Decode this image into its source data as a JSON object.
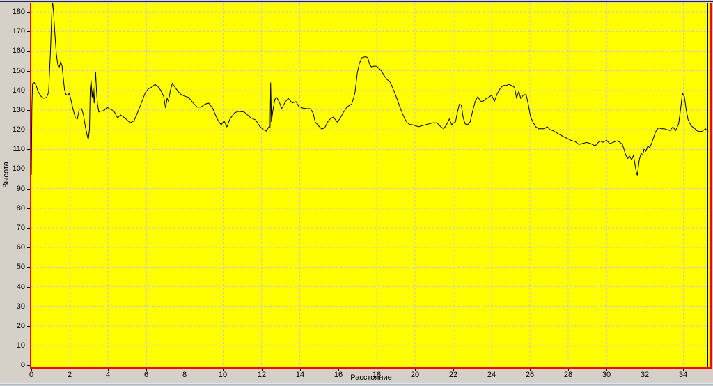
{
  "ui": {
    "background_color": "#d5d1c8",
    "top_edge_color": "#23235f",
    "bottom_edge_color": "#dce6f4"
  },
  "chart_data": {
    "type": "line",
    "title": "",
    "xlabel": "Расстояние",
    "ylabel": "Высота",
    "xlim": [
      0,
      35.4
    ],
    "ylim": [
      -1,
      184.3
    ],
    "x_ticks": [
      0,
      2,
      4,
      6,
      8,
      10,
      12,
      14,
      16,
      18,
      20,
      22,
      24,
      26,
      28,
      30,
      32,
      34
    ],
    "y_ticks": [
      0,
      10,
      20,
      30,
      40,
      50,
      60,
      70,
      80,
      90,
      100,
      110,
      120,
      130,
      140,
      150,
      160,
      170,
      180
    ],
    "grid": true,
    "legend": "none",
    "cursor_distance": 35.27,
    "colors": {
      "plot_background": "#ffff00",
      "grid": "#c6c6cc",
      "line": "#000000",
      "frame": "#ff0000",
      "cursor": "#000000",
      "tick_text": "#000000"
    },
    "points": [
      [
        0,
        97
      ],
      [
        0.03,
        131
      ],
      [
        0.06,
        143.5
      ],
      [
        0.15,
        144
      ],
      [
        0.25,
        142.5
      ],
      [
        0.35,
        139.5
      ],
      [
        0.5,
        137
      ],
      [
        0.65,
        136
      ],
      [
        0.8,
        136.5
      ],
      [
        0.9,
        139
      ],
      [
        1,
        160
      ],
      [
        1.06,
        178
      ],
      [
        1.1,
        186
      ],
      [
        1.16,
        180
      ],
      [
        1.22,
        170
      ],
      [
        1.3,
        159
      ],
      [
        1.38,
        153
      ],
      [
        1.46,
        152
      ],
      [
        1.53,
        154.5
      ],
      [
        1.6,
        152.5
      ],
      [
        1.67,
        146
      ],
      [
        1.73,
        140.5
      ],
      [
        1.8,
        138
      ],
      [
        1.9,
        137.5
      ],
      [
        1.98,
        138.5
      ],
      [
        2.07,
        135
      ],
      [
        2.17,
        130.5
      ],
      [
        2.3,
        126
      ],
      [
        2.4,
        125.5
      ],
      [
        2.5,
        130.4
      ],
      [
        2.62,
        130.7
      ],
      [
        2.72,
        127.5
      ],
      [
        2.8,
        122.5
      ],
      [
        2.9,
        117.5
      ],
      [
        2.97,
        115
      ],
      [
        3.03,
        120
      ],
      [
        3.07,
        141
      ],
      [
        3.12,
        145
      ],
      [
        3.17,
        136.5
      ],
      [
        3.22,
        141.5
      ],
      [
        3.28,
        133.5
      ],
      [
        3.35,
        149.5
      ],
      [
        3.4,
        140
      ],
      [
        3.45,
        133
      ],
      [
        3.52,
        129
      ],
      [
        3.62,
        129.5
      ],
      [
        3.72,
        129.5
      ],
      [
        3.82,
        130
      ],
      [
        3.95,
        131.4
      ],
      [
        4.1,
        130.5
      ],
      [
        4.3,
        129.6
      ],
      [
        4.5,
        126
      ],
      [
        4.65,
        127.5
      ],
      [
        4.8,
        126.5
      ],
      [
        5,
        125
      ],
      [
        5.15,
        123.5
      ],
      [
        5.35,
        124.5
      ],
      [
        5.55,
        129
      ],
      [
        5.75,
        134
      ],
      [
        5.95,
        139
      ],
      [
        6.1,
        140.8
      ],
      [
        6.25,
        141.5
      ],
      [
        6.45,
        143
      ],
      [
        6.6,
        142
      ],
      [
        6.75,
        140
      ],
      [
        6.9,
        137
      ],
      [
        7,
        131
      ],
      [
        7.08,
        136
      ],
      [
        7.15,
        134.5
      ],
      [
        7.25,
        140
      ],
      [
        7.35,
        143.5
      ],
      [
        7.5,
        141.5
      ],
      [
        7.65,
        139.5
      ],
      [
        7.8,
        138
      ],
      [
        8,
        137
      ],
      [
        8.2,
        136.5
      ],
      [
        8.45,
        133.5
      ],
      [
        8.65,
        131.5
      ],
      [
        8.85,
        131.5
      ],
      [
        9.05,
        133
      ],
      [
        9.25,
        133.5
      ],
      [
        9.45,
        131
      ],
      [
        9.6,
        127.5
      ],
      [
        9.75,
        124.5
      ],
      [
        9.9,
        122.5
      ],
      [
        10.05,
        124.5
      ],
      [
        10.2,
        121.5
      ],
      [
        10.35,
        125.4
      ],
      [
        10.6,
        128.6
      ],
      [
        10.8,
        129.3
      ],
      [
        11.1,
        129
      ],
      [
        11.45,
        126
      ],
      [
        11.7,
        125
      ],
      [
        11.9,
        121.8
      ],
      [
        12.1,
        120
      ],
      [
        12.25,
        119.3
      ],
      [
        12.38,
        121.4
      ],
      [
        12.45,
        121.4
      ],
      [
        12.48,
        144
      ],
      [
        12.52,
        124
      ],
      [
        12.6,
        130
      ],
      [
        12.7,
        135.5
      ],
      [
        12.8,
        136.4
      ],
      [
        12.95,
        133.6
      ],
      [
        13.05,
        130.7
      ],
      [
        13.25,
        134.3
      ],
      [
        13.4,
        136
      ],
      [
        13.6,
        133.6
      ],
      [
        13.8,
        134.3
      ],
      [
        13.95,
        131.8
      ],
      [
        14.15,
        131
      ],
      [
        14.35,
        130.7
      ],
      [
        14.55,
        130.7
      ],
      [
        14.7,
        128.2
      ],
      [
        14.8,
        124
      ],
      [
        15,
        121.8
      ],
      [
        15.15,
        120.3
      ],
      [
        15.3,
        121
      ],
      [
        15.45,
        123.9
      ],
      [
        15.6,
        125.7
      ],
      [
        15.75,
        126.4
      ],
      [
        15.95,
        123.9
      ],
      [
        16.1,
        125.7
      ],
      [
        16.25,
        128.5
      ],
      [
        16.45,
        131.5
      ],
      [
        16.6,
        132.5
      ],
      [
        16.7,
        133
      ],
      [
        16.8,
        136
      ],
      [
        16.88,
        139
      ],
      [
        17,
        149
      ],
      [
        17.1,
        153.5
      ],
      [
        17.22,
        156.5
      ],
      [
        17.35,
        157
      ],
      [
        17.48,
        157
      ],
      [
        17.55,
        156.5
      ],
      [
        17.63,
        153.5
      ],
      [
        17.73,
        152
      ],
      [
        17.87,
        152.3
      ],
      [
        18,
        152.3
      ],
      [
        18.1,
        151.5
      ],
      [
        18.25,
        150
      ],
      [
        18.4,
        147.5
      ],
      [
        18.55,
        145.5
      ],
      [
        18.7,
        144.5
      ],
      [
        18.85,
        141
      ],
      [
        19,
        137.5
      ],
      [
        19.15,
        133.5
      ],
      [
        19.3,
        129.5
      ],
      [
        19.45,
        126
      ],
      [
        19.6,
        123.5
      ],
      [
        19.75,
        122.6
      ],
      [
        19.9,
        122.5
      ],
      [
        20.05,
        122
      ],
      [
        20.2,
        121.5
      ],
      [
        20.35,
        122
      ],
      [
        20.55,
        122.5
      ],
      [
        20.75,
        123
      ],
      [
        20.95,
        123.5
      ],
      [
        21.15,
        123.5
      ],
      [
        21.35,
        121.5
      ],
      [
        21.5,
        120.5
      ],
      [
        21.65,
        122.5
      ],
      [
        21.8,
        125.5
      ],
      [
        21.92,
        122.5
      ],
      [
        22.02,
        123.5
      ],
      [
        22.12,
        124
      ],
      [
        22.22,
        129
      ],
      [
        22.32,
        133
      ],
      [
        22.42,
        132.5
      ],
      [
        22.52,
        126
      ],
      [
        22.62,
        123
      ],
      [
        22.75,
        122.5
      ],
      [
        22.88,
        124
      ],
      [
        23,
        129
      ],
      [
        23.15,
        134.5
      ],
      [
        23.28,
        136.8
      ],
      [
        23.42,
        134.5
      ],
      [
        23.56,
        134.5
      ],
      [
        23.7,
        135.7
      ],
      [
        23.85,
        136.5
      ],
      [
        24,
        137.5
      ],
      [
        24.15,
        134.5
      ],
      [
        24.3,
        138.5
      ],
      [
        24.45,
        141
      ],
      [
        24.6,
        142.5
      ],
      [
        24.75,
        142.5
      ],
      [
        24.9,
        143
      ],
      [
        25.05,
        142.5
      ],
      [
        25.2,
        141.5
      ],
      [
        25.3,
        136
      ],
      [
        25.42,
        139.5
      ],
      [
        25.52,
        136
      ],
      [
        25.65,
        137.5
      ],
      [
        25.8,
        138
      ],
      [
        25.92,
        132.5
      ],
      [
        26.02,
        127
      ],
      [
        26.15,
        124
      ],
      [
        26.3,
        121.5
      ],
      [
        26.45,
        120.5
      ],
      [
        26.6,
        120.5
      ],
      [
        26.75,
        120.5
      ],
      [
        26.9,
        121.5
      ],
      [
        27.05,
        120
      ],
      [
        27.2,
        119.5
      ],
      [
        27.38,
        118.5
      ],
      [
        27.55,
        117.5
      ],
      [
        27.75,
        116.5
      ],
      [
        27.95,
        115.5
      ],
      [
        28.15,
        114.5
      ],
      [
        28.35,
        114
      ],
      [
        28.55,
        112.5
      ],
      [
        28.75,
        113
      ],
      [
        28.95,
        113.5
      ],
      [
        29.15,
        113
      ],
      [
        29.4,
        111.8
      ],
      [
        29.65,
        114.3
      ],
      [
        29.8,
        113.6
      ],
      [
        30,
        114.6
      ],
      [
        30.15,
        112.9
      ],
      [
        30.35,
        113.6
      ],
      [
        30.55,
        114.3
      ],
      [
        30.7,
        113.5
      ],
      [
        30.82,
        112.5
      ],
      [
        31,
        107
      ],
      [
        31.1,
        105.4
      ],
      [
        31.2,
        106.4
      ],
      [
        31.3,
        104.6
      ],
      [
        31.4,
        107
      ],
      [
        31.55,
        98
      ],
      [
        31.6,
        96.8
      ],
      [
        31.7,
        104.6
      ],
      [
        31.8,
        108
      ],
      [
        31.88,
        107
      ],
      [
        31.95,
        110
      ],
      [
        32.05,
        109
      ],
      [
        32.15,
        111.8
      ],
      [
        32.25,
        110.7
      ],
      [
        32.4,
        114.6
      ],
      [
        32.55,
        118.9
      ],
      [
        32.7,
        121
      ],
      [
        32.85,
        120.5
      ],
      [
        33,
        120.5
      ],
      [
        33.15,
        120
      ],
      [
        33.3,
        119.6
      ],
      [
        33.45,
        121.4
      ],
      [
        33.6,
        119.6
      ],
      [
        33.75,
        123
      ],
      [
        33.85,
        130
      ],
      [
        33.95,
        138.6
      ],
      [
        34.05,
        137
      ],
      [
        34.15,
        130
      ],
      [
        34.25,
        125
      ],
      [
        34.4,
        122
      ],
      [
        34.55,
        121
      ],
      [
        34.7,
        119.5
      ],
      [
        34.85,
        119
      ],
      [
        35,
        119.3
      ],
      [
        35.15,
        120.5
      ],
      [
        35.3,
        119
      ]
    ]
  }
}
